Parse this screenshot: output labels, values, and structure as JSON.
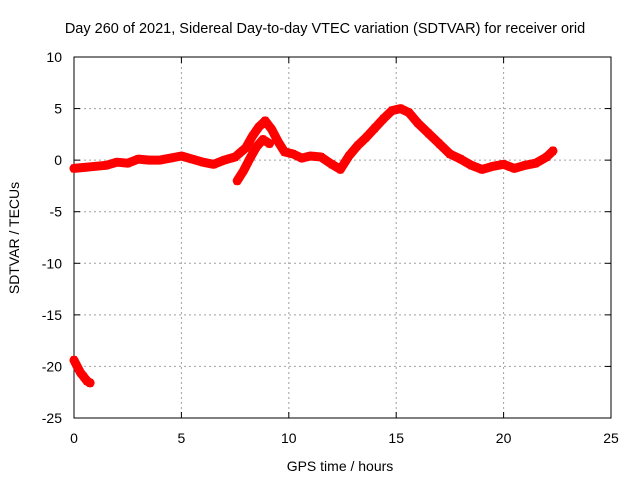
{
  "chart_data": {
    "type": "scatter",
    "title": "Day 260 of 2021, Sidereal Day-to-day VTEC variation (SDTVAR) for receiver orid",
    "xlabel": "GPS time / hours",
    "ylabel": "SDTVAR / TECUs",
    "xlim": [
      0,
      25
    ],
    "ylim": [
      -25,
      10
    ],
    "xticks": [
      0,
      5,
      10,
      15,
      20,
      25
    ],
    "yticks": [
      10,
      5,
      0,
      -5,
      -10,
      -15,
      -20,
      -25
    ],
    "xtick_labels": [
      "0",
      "5",
      "10",
      "15",
      "20",
      "25"
    ],
    "ytick_labels": [
      "10",
      "5",
      "0",
      "-5",
      "-10",
      "-15",
      "-20",
      "-25"
    ],
    "grid": true,
    "series": [
      {
        "name": "SDTVAR",
        "color": "#ff0000",
        "x": [
          0.0,
          0.5,
          1.0,
          1.5,
          2.0,
          2.5,
          3.0,
          3.5,
          4.0,
          4.5,
          5.0,
          5.5,
          6.0,
          6.5,
          7.0,
          7.5,
          8.0,
          8.3,
          8.6,
          8.9,
          9.2,
          9.5,
          9.8,
          10.2,
          10.6,
          11.0,
          11.5,
          12.0,
          12.4,
          12.8,
          13.2,
          13.6,
          14.0,
          14.4,
          14.8,
          15.2,
          15.6,
          16.0,
          16.5,
          17.0,
          17.5,
          18.0,
          18.5,
          19.0,
          19.5,
          20.0,
          20.5,
          21.0,
          21.5,
          22.0,
          22.3
        ],
        "y": [
          -0.8,
          -0.7,
          -0.6,
          -0.5,
          -0.2,
          -0.3,
          0.1,
          0.0,
          0.0,
          0.2,
          0.4,
          0.1,
          -0.2,
          -0.4,
          0.0,
          0.3,
          1.2,
          2.3,
          3.2,
          3.8,
          3.0,
          1.8,
          0.8,
          0.6,
          0.2,
          0.4,
          0.3,
          -0.4,
          -0.9,
          0.4,
          1.4,
          2.2,
          3.1,
          4.0,
          4.8,
          5.0,
          4.6,
          3.6,
          2.6,
          1.6,
          0.6,
          0.1,
          -0.5,
          -0.9,
          -0.6,
          -0.4,
          -0.8,
          -0.5,
          -0.3,
          0.3,
          0.9
        ]
      },
      {
        "name": "SDTVAR (branch)",
        "color": "#ff0000",
        "x": [
          7.6,
          7.9,
          8.2,
          8.5,
          8.8,
          9.1
        ],
        "y": [
          -2.0,
          -1.0,
          0.2,
          1.3,
          2.0,
          1.6
        ]
      },
      {
        "name": "SDTVAR (early)",
        "color": "#ff0000",
        "x": [
          0.0,
          0.15,
          0.3,
          0.45,
          0.6,
          0.75
        ],
        "y": [
          -19.4,
          -20.0,
          -20.6,
          -21.0,
          -21.4,
          -21.6
        ]
      }
    ]
  }
}
